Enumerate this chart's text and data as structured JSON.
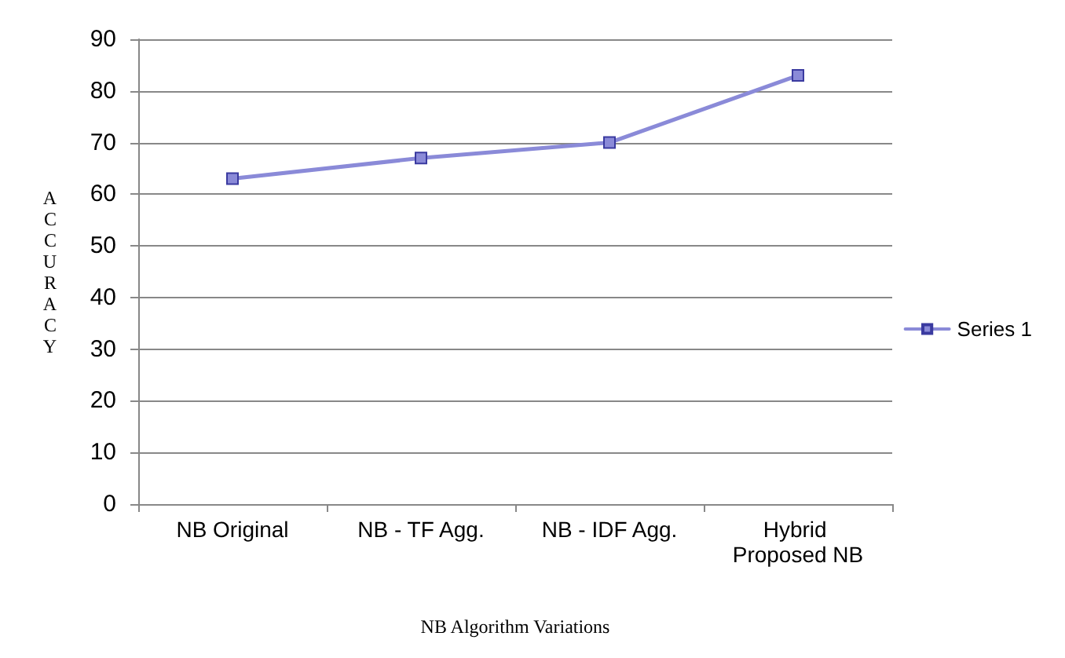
{
  "chart_data": {
    "type": "line",
    "xlabel": "NB Algorithm Variations",
    "ylabel": "ACCURACY",
    "categories": [
      "NB Original",
      "NB - TF Agg.",
      "NB - IDF Agg.",
      "Hybrid Proposed NB"
    ],
    "series": [
      {
        "name": "Series 1",
        "color": "#8a8ad8",
        "values": [
          63,
          67,
          70,
          83
        ]
      }
    ],
    "ylim": [
      0,
      90
    ],
    "yticks": [
      0,
      10,
      20,
      30,
      40,
      50,
      60,
      70,
      80,
      90
    ],
    "grid": "y",
    "legend": "right",
    "marker": "square",
    "line_style": "solid"
  }
}
